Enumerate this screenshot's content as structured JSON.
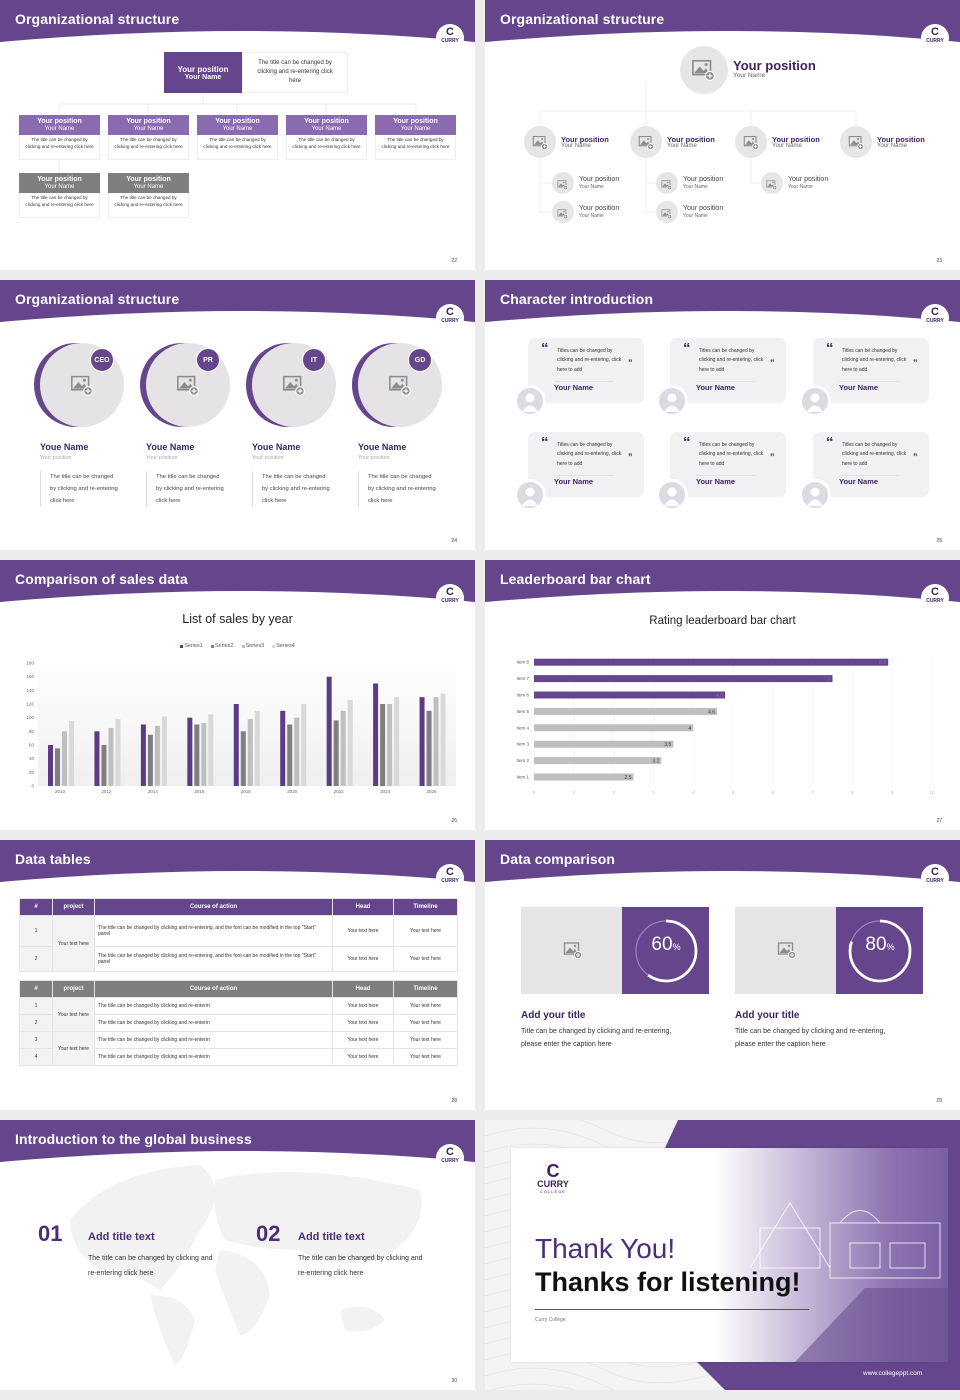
{
  "brand": {
    "logo_letter": "C",
    "logo_text": "CURRY",
    "accent": "#65468c",
    "accent_light": "#8a6bb0",
    "gray": "#7f7f7f"
  },
  "org1": {
    "title": "Organizational structure",
    "page": "22",
    "top": {
      "position": "Your position",
      "name": "Your Name",
      "desc": "The title can be changed by clicking and re-entering click here"
    },
    "row1": [
      {
        "position": "Your position",
        "name": "Your Name",
        "desc": "The title can be changed by clicking and re-entering click here"
      },
      {
        "position": "Your position",
        "name": "Your Name",
        "desc": "The title can be changed by clicking and re-entering click here"
      },
      {
        "position": "Your position",
        "name": "Your Name",
        "desc": "The title can be changed by clicking and re-entering click here"
      },
      {
        "position": "Your position",
        "name": "Your Name",
        "desc": "The title can be changed by clicking and re-entering click here"
      },
      {
        "position": "Your position",
        "name": "Your Name",
        "desc": "The title can be changed by clicking and re-entering click here"
      }
    ],
    "row2": [
      {
        "position": "Your position",
        "name": "Your Name",
        "desc": "The title can be changed by clicking and re-entering click here"
      },
      {
        "position": "Your position",
        "name": "Your Name",
        "desc": "The title can be changed by clicking and re-entering click here"
      }
    ]
  },
  "org2": {
    "title": "Organizational structure",
    "page": "23",
    "top": {
      "position": "Your position",
      "name": "Your Name"
    },
    "level2": [
      {
        "position": "Your position",
        "name": "Your Name"
      },
      {
        "position": "Your position",
        "name": "Your Name"
      },
      {
        "position": "Your position",
        "name": "Your Name"
      },
      {
        "position": "Your position",
        "name": "Your Name"
      }
    ],
    "level3": [
      [
        {
          "position": "Your position",
          "name": "Your Name"
        },
        {
          "position": "Your position",
          "name": "Your Name"
        }
      ],
      [
        {
          "position": "Your position",
          "name": "Your Name"
        },
        {
          "position": "Your position",
          "name": "Your Name"
        }
      ],
      [
        {
          "position": "Your position",
          "name": "Your Name"
        }
      ]
    ]
  },
  "team": {
    "title": "Organizational structure",
    "page": "24",
    "members": [
      {
        "badge": "CEO",
        "name": "Youe Name",
        "position": "Your position",
        "desc": "The title can be changed by clicking and re-entering click here"
      },
      {
        "badge": "PR",
        "name": "Youe Name",
        "position": "Your position",
        "desc": "The title can be changed by clicking and re-entering click here"
      },
      {
        "badge": "IT",
        "name": "Youe Name",
        "position": "Your position",
        "desc": "The title can be changed by clicking and re-entering click here"
      },
      {
        "badge": "GD",
        "name": "Youe Name",
        "position": "Your position",
        "desc": "The title can be changed by clicking and re-entering click here"
      }
    ]
  },
  "characters": {
    "title": "Character introduction",
    "page": "25",
    "open_quote": "“",
    "close_quote": "”",
    "cards": [
      {
        "quote": "Titles can be changed by clicking and re-entering, click here to add",
        "name": "Your Name"
      },
      {
        "quote": "Titles can be changed by clicking and re-entering, click here to add",
        "name": "Your Name"
      },
      {
        "quote": "Titles can be changed by clicking and re-entering, click here to add",
        "name": "Your Name"
      },
      {
        "quote": "Titles can be changed by clicking and re-entering, click here to add",
        "name": "Your Name"
      },
      {
        "quote": "Titles can be changed by clicking and re-entering, click here to add",
        "name": "Your Name"
      },
      {
        "quote": "Titles can be changed by clicking and re-entering, click here to add",
        "name": "Your Name"
      }
    ]
  },
  "sales": {
    "title": "Comparison of sales data",
    "page": "26"
  },
  "leaderboard": {
    "title": "Leaderboard bar chart",
    "page": "27"
  },
  "chart_data": [
    {
      "type": "bar",
      "title": "List of sales by year",
      "categories": [
        "2010",
        "2012",
        "2014",
        "2016",
        "2018",
        "2020",
        "2022",
        "2024",
        "2026"
      ],
      "series": [
        {
          "name": "Series1",
          "color": "#5c3b86",
          "values": [
            60,
            80,
            90,
            100,
            120,
            110,
            160,
            150,
            130
          ]
        },
        {
          "name": "Series2",
          "color": "#7f7f7f",
          "values": [
            55,
            60,
            75,
            90,
            80,
            90,
            96,
            120,
            110
          ]
        },
        {
          "name": "Series3",
          "color": "#bfbfbf",
          "values": [
            80,
            85,
            88,
            92,
            98,
            100,
            110,
            120,
            130
          ]
        },
        {
          "name": "Series4",
          "color": "#d9d9d9",
          "values": [
            95,
            98,
            102,
            105,
            110,
            120,
            126,
            130,
            135
          ]
        }
      ],
      "ylim": [
        0,
        180
      ],
      "yticks": [
        "0",
        "20",
        "40",
        "60",
        "80",
        "100",
        "120",
        "140",
        "160",
        "180"
      ],
      "legend": "top",
      "grid": false
    },
    {
      "type": "bar",
      "orientation": "horizontal",
      "title": "Rating leaderboard bar chart",
      "categories": [
        "Item 1",
        "Item 2",
        "Item 3",
        "Item 4",
        "Item 5",
        "Item 6",
        "Item 7",
        "Item 8"
      ],
      "values": [
        2.5,
        3.2,
        3.5,
        4,
        4.6,
        4.8,
        7.5,
        8.9
      ],
      "value_labels": [
        "2.5",
        "3.2",
        "3.5",
        "4",
        "4.6",
        "4.8",
        "7.5",
        "8.9"
      ],
      "colors": [
        "#bfbfbf",
        "#bfbfbf",
        "#bfbfbf",
        "#bfbfbf",
        "#bfbfbf",
        "#65468c",
        "#65468c",
        "#65468c"
      ],
      "xlim": [
        0,
        10
      ],
      "xticks": [
        "0",
        "1",
        "2",
        "3",
        "4",
        "5",
        "6",
        "7",
        "8",
        "9",
        "10"
      ],
      "grid": true
    }
  ],
  "tables": {
    "title": "Data tables",
    "page": "28",
    "headers": [
      "#",
      "project",
      "Course of action",
      "Head",
      "Timeline"
    ],
    "table1": {
      "header_color": "#65468c",
      "projects": [
        "Your text here"
      ],
      "rows": [
        {
          "num": "1",
          "action": "The title can be changed by clicking and re-entering, and the font can be modified in the top \"Start\" panel",
          "head": "Your text here",
          "timeline": "Your text here"
        },
        {
          "num": "2",
          "action": "The title can be changed by clicking and re-entering, and the font can be modified in the top \"Start\" panel",
          "head": "Your text here",
          "timeline": "Your text here"
        }
      ]
    },
    "table2": {
      "header_color": "#7f7f7f",
      "projects": [
        "Your text here",
        "Your text here"
      ],
      "rows": [
        {
          "num": "1",
          "action": "The title can be changed by clicking and re-enterin",
          "head": "Your text here",
          "timeline": "Your text here"
        },
        {
          "num": "2",
          "action": "The title can be changed by clicking and re-enterin",
          "head": "Your text here",
          "timeline": "Your text here"
        },
        {
          "num": "3",
          "action": "The title can be changed by clicking and re-enterin",
          "head": "Your text here",
          "timeline": "Your text here"
        },
        {
          "num": "4",
          "action": "The title can be changed by clicking and re-enterin",
          "head": "Your text here",
          "timeline": "Your text here"
        }
      ]
    }
  },
  "comparison": {
    "title": "Data comparison",
    "page": "29",
    "items": [
      {
        "percent": 60,
        "value": "60",
        "unit": "%",
        "title": "Add your title",
        "desc": "Title can be changed by clicking and re-entering, please enter the caption here"
      },
      {
        "percent": 80,
        "value": "80",
        "unit": "%",
        "title": "Add your title",
        "desc": "Title can be changed by clicking and re-entering, please enter the caption here"
      }
    ]
  },
  "global": {
    "title": "Introduction to the global business",
    "page": "30",
    "items": [
      {
        "num": "01",
        "title": "Add title text",
        "desc": "The title can be changed by clicking and re-entering click here"
      },
      {
        "num": "02",
        "title": "Add title text",
        "desc": "The title can be changed by clicking and re-entering click here"
      }
    ]
  },
  "thanks": {
    "logo_letter": "C",
    "logo_text": "CURRY",
    "logo_sub": "COLLEGE",
    "line1": "Thank You!",
    "line2": "Thanks for listening!",
    "org": "Curry College",
    "url": "www.collegeppt.com"
  }
}
